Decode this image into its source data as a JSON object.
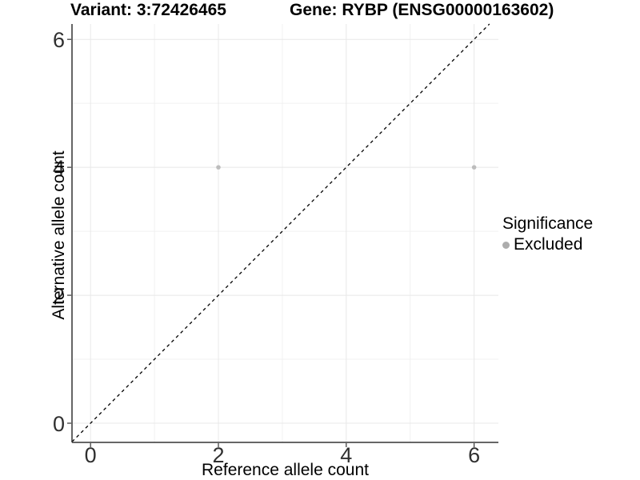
{
  "title": {
    "left": "Variant: 3:72426465",
    "right": "Gene: RYBP (ENSG00000163602)"
  },
  "axes": {
    "x_label": "Reference allele count",
    "y_label": "Alternative allele count"
  },
  "legend": {
    "title": "Significance",
    "items": [
      {
        "label": "Excluded",
        "color": "#adadad"
      }
    ]
  },
  "colors": {
    "point": "#bdbdbd",
    "legend_point": "#adadad",
    "axis_line": "#333333",
    "tick_mark": "#333333",
    "tick_label": "#303030",
    "grid_major": "#e8e8e8",
    "grid_minor": "#f1f1f1",
    "identity_line": "#000000",
    "background": "#ffffff"
  },
  "chart_data": {
    "type": "scatter",
    "title": "Variant: 3:72426465   Gene: RYBP (ENSG00000163602)",
    "xlabel": "Reference allele count",
    "ylabel": "Alternative allele count",
    "xlim": [
      -0.29,
      6.38
    ],
    "ylim": [
      -0.3,
      6.24
    ],
    "x_ticks": [
      0,
      2,
      4,
      6
    ],
    "y_ticks": [
      0,
      2,
      4,
      6
    ],
    "x_minor_ticks": [
      1,
      3,
      5
    ],
    "y_minor_ticks": [
      1,
      3,
      5
    ],
    "grid": true,
    "legend_position": "right",
    "series": [
      {
        "name": "Excluded",
        "color": "#bdbdbd",
        "points": [
          [
            2,
            4
          ],
          [
            6,
            4
          ]
        ]
      }
    ],
    "reference_line": {
      "type": "identity",
      "slope": 1,
      "intercept": 0,
      "style": "dashed"
    }
  }
}
